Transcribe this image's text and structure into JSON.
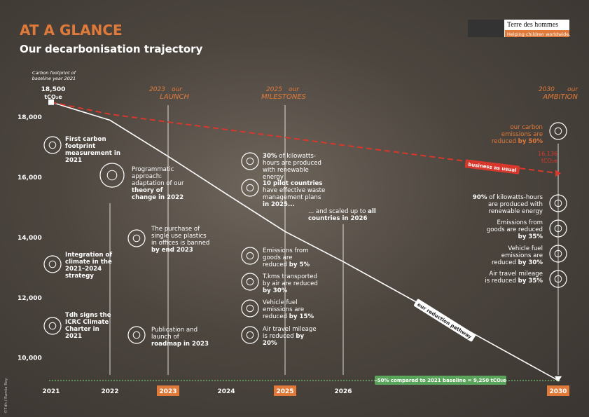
{
  "header": {
    "title": "AT A GLANCE",
    "subtitle": "Our decarbonisation trajectory",
    "logo": "Terre des hommes",
    "tagline": "Helping children worldwide."
  },
  "credit": "©Tdh / Ramia Roy",
  "baseline": {
    "label": "Carbon footprint of baseline year 2021",
    "unit": "tCO₂e"
  },
  "phases": [
    {
      "year": "2023",
      "word": "our",
      "name": "LAUNCH"
    },
    {
      "year": "2025",
      "word": "our",
      "name": "MILESTONES"
    },
    {
      "year": "2030",
      "word": "our",
      "name": "AMBITION"
    }
  ],
  "notes": [
    [
      {
        "text": "First carbon footprint measurement in 2021",
        "bold": true
      }
    ],
    [
      {
        "text": "Integration of climate in the 2021–2024 strategy",
        "bold": true
      }
    ],
    [
      {
        "text": "Tdh signs the ICRC Climate Charter in 2021",
        "bold": true
      }
    ],
    [
      {
        "text": "Programmatic approach: adaptation of our ",
        "bold": false
      },
      {
        "text": "theory of change in 2022",
        "bold": true
      }
    ],
    [
      {
        "text": "The purchase of single use plastics in offices is banned ",
        "bold": false
      },
      {
        "text": "by end 2023",
        "bold": true
      }
    ],
    [
      {
        "text": "Publication and launch of ",
        "bold": false
      },
      {
        "text": "roadmap in 2023",
        "bold": true
      }
    ],
    [
      {
        "text": "30%",
        "bold": true
      },
      {
        "text": " of kilowatts-hours are produced with renewable energy",
        "bold": false
      }
    ],
    [
      {
        "text": "10 pilot countries",
        "bold": true
      },
      {
        "text": " have effective waste management plans ",
        "bold": false
      },
      {
        "text": "in 2025...",
        "bold": true
      }
    ],
    [
      {
        "text": "... and scaled up to ",
        "bold": false
      },
      {
        "text": "all countries in 2026",
        "bold": true
      }
    ],
    [
      {
        "text": "Emissions from goods are reduced ",
        "bold": false
      },
      {
        "text": "by 5%",
        "bold": true
      }
    ],
    [
      {
        "text": "T.kms transported by air are reduced ",
        "bold": false
      },
      {
        "text": "by 30%",
        "bold": true
      }
    ],
    [
      {
        "text": "Vehicle fuel emissions are reduced ",
        "bold": false
      },
      {
        "text": "by 15%",
        "bold": true
      }
    ],
    [
      {
        "text": "Air travel mileage is reduced ",
        "bold": false
      },
      {
        "text": "by 20%",
        "bold": true
      }
    ],
    [
      {
        "text": "our carbon emissions are reduced ",
        "bold": false
      },
      {
        "text": "by 50%",
        "bold": true
      }
    ],
    [
      {
        "text": "90%",
        "bold": true
      },
      {
        "text": " of kilowatts-hours are produced with renewable energy",
        "bold": false
      }
    ],
    [
      {
        "text": "Emissions from goods are reduced ",
        "bold": false
      },
      {
        "text": "by 35%",
        "bold": true
      }
    ],
    [
      {
        "text": "Vehicle fuel emissions are reduced ",
        "bold": false
      },
      {
        "text": "by 30%",
        "bold": true
      }
    ],
    [
      {
        "text": "Air travel mileage is reduced ",
        "bold": false
      },
      {
        "text": "by 35%",
        "bold": true
      }
    ]
  ],
  "chart_data": {
    "type": "line",
    "categories": [
      "2021",
      "2022",
      "2023",
      "2024",
      "2025",
      "2026",
      "2030"
    ],
    "highlight": [
      false,
      false,
      true,
      false,
      true,
      false,
      true
    ],
    "series": [
      {
        "name": "our reduction pathway",
        "color": "#ffffff",
        "dashed": false,
        "values": [
          18500,
          17900,
          16700,
          15450,
          14200,
          13200,
          9250
        ],
        "value_labels": [
          "18,500",
          null,
          null,
          null,
          null,
          null,
          null
        ]
      },
      {
        "name": "business as usual",
        "color": "#d9372c",
        "dashed": true,
        "values": [
          18500,
          18100,
          17840,
          17590,
          17330,
          17070,
          16136
        ],
        "value_labels": [
          null,
          null,
          null,
          null,
          null,
          null,
          "16,136"
        ]
      }
    ],
    "ylim": [
      9200,
      19100
    ],
    "yticks": [
      {
        "value": 10000,
        "label": "10,000"
      },
      {
        "value": 12000,
        "label": "12,000"
      },
      {
        "value": 14000,
        "label": "14,000"
      },
      {
        "value": 16000,
        "label": "16,000"
      },
      {
        "value": 18000,
        "label": "18,000"
      }
    ],
    "grid": false,
    "annotation": "–50% compared to 2021 baseline = 9,250 tCO₂e"
  }
}
